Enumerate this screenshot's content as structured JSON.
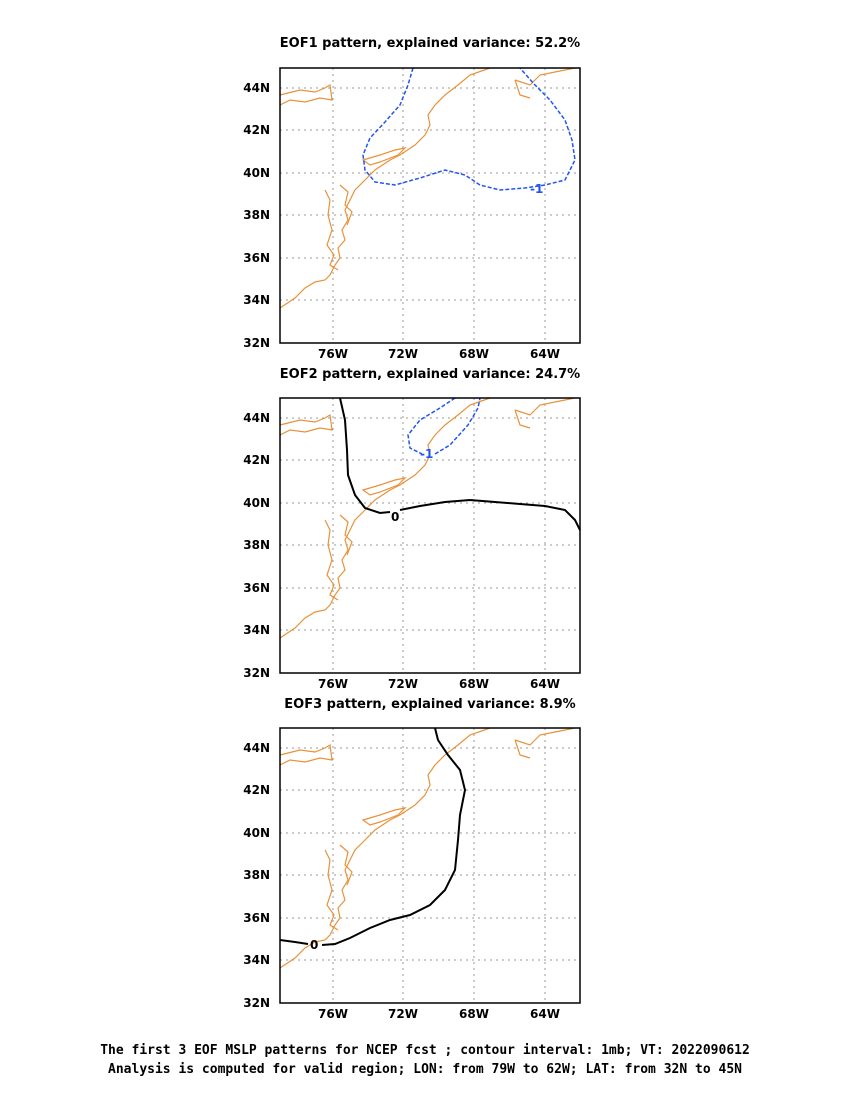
{
  "panels": [
    {
      "title": "EOF1 pattern, explained variance: 52.2%",
      "contour_labels": [
        "-1"
      ]
    },
    {
      "title": "EOF2 pattern, explained variance: 24.7%",
      "contour_labels": [
        "0",
        "-1"
      ]
    },
    {
      "title": "EOF3 pattern, explained variance: 8.9%",
      "contour_labels": [
        "0"
      ]
    }
  ],
  "axes": {
    "lat_ticks": [
      "44N",
      "42N",
      "40N",
      "38N",
      "36N",
      "34N",
      "32N"
    ],
    "lon_ticks": [
      "76W",
      "72W",
      "68W",
      "64W"
    ]
  },
  "footer": {
    "line1": "The first 3 EOF MSLP patterns for NCEP fcst ; contour interval: 1mb; VT: 2022090612",
    "line2": "Analysis is computed for valid region; LON: from 79W to 62W; LAT: from 32N to 45N"
  },
  "colors": {
    "coastline": "#e8923a",
    "negative_contour": "#2255ee",
    "zero_contour": "#000000",
    "grid": "#999999"
  }
}
